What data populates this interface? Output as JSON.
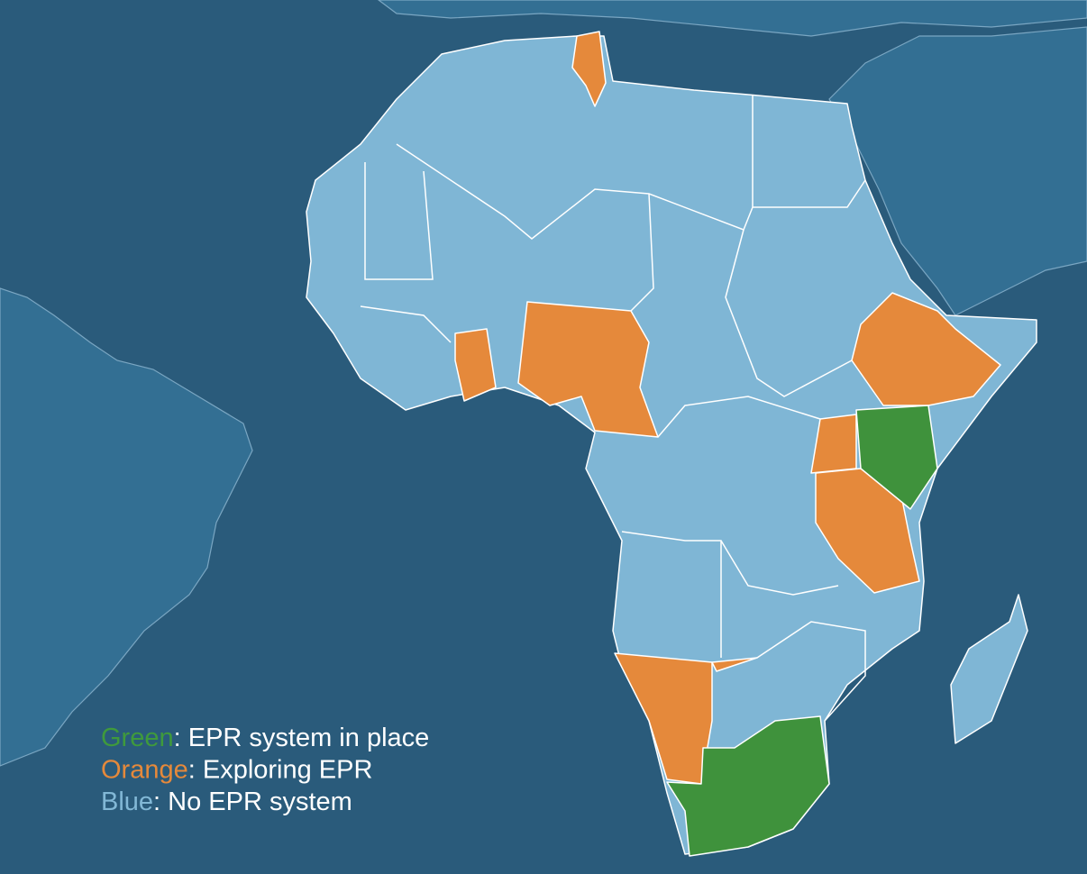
{
  "legend": [
    {
      "key": "Green",
      "text": ": EPR system in place",
      "color": "#3f9a3c"
    },
    {
      "key": "Orange",
      "text": ": Exploring EPR",
      "color": "#e5893b"
    },
    {
      "key": "Blue",
      "text": ": No EPR system",
      "color": "#82b8d6"
    }
  ]
}
